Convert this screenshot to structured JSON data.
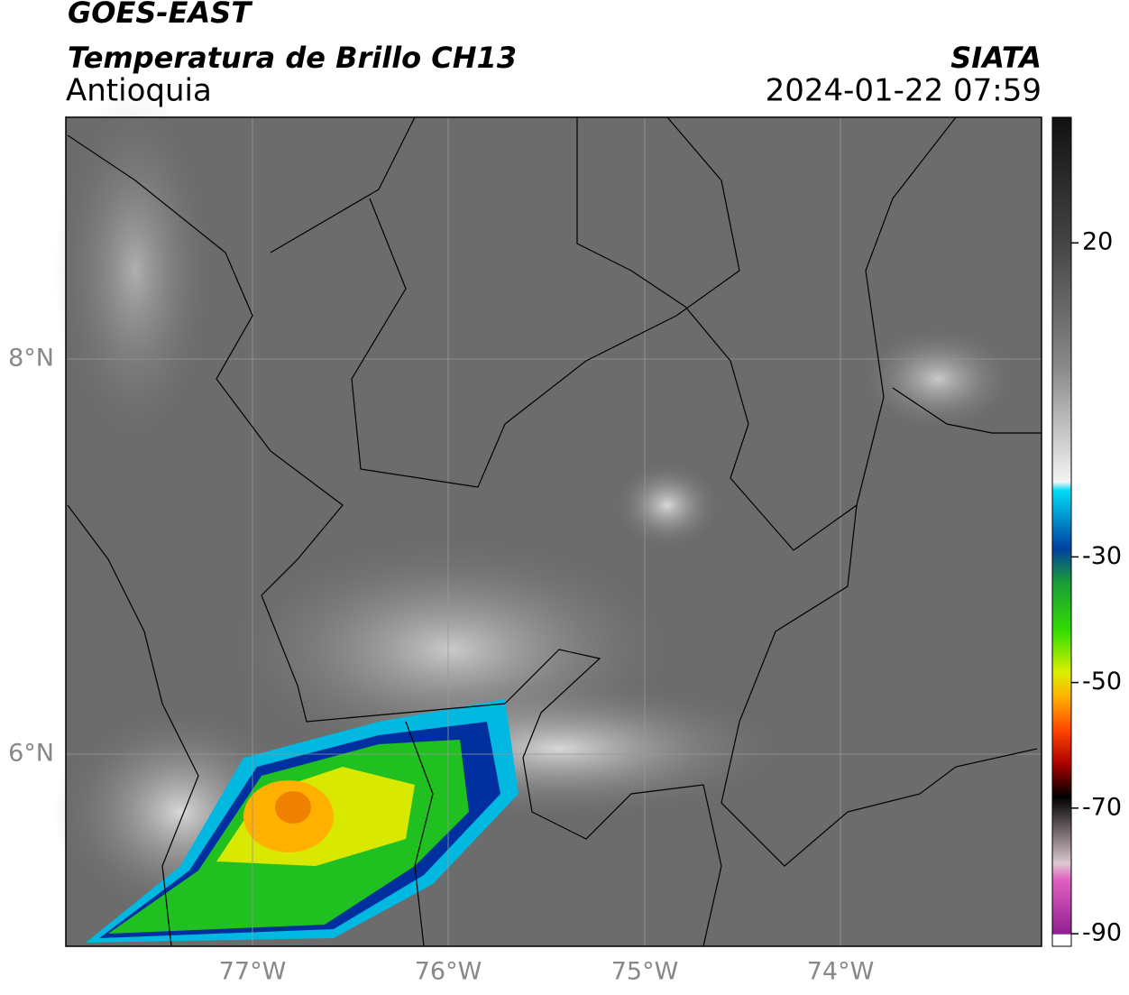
{
  "header": {
    "title": "GOES-EAST",
    "subtitle": "Temperatura de Brillo CH13",
    "region": "Antioquia",
    "source": "SIATA",
    "datetime": "2024-01-22 07:59"
  },
  "map": {
    "lat_labels": [
      "8°N",
      "6°N"
    ],
    "lon_labels": [
      "77°W",
      "76°W",
      "75°W",
      "74°W"
    ]
  },
  "colorbar": {
    "lim": [
      -92,
      40
    ],
    "ticks": [
      20,
      -30,
      -50,
      -70,
      -90
    ]
  }
}
